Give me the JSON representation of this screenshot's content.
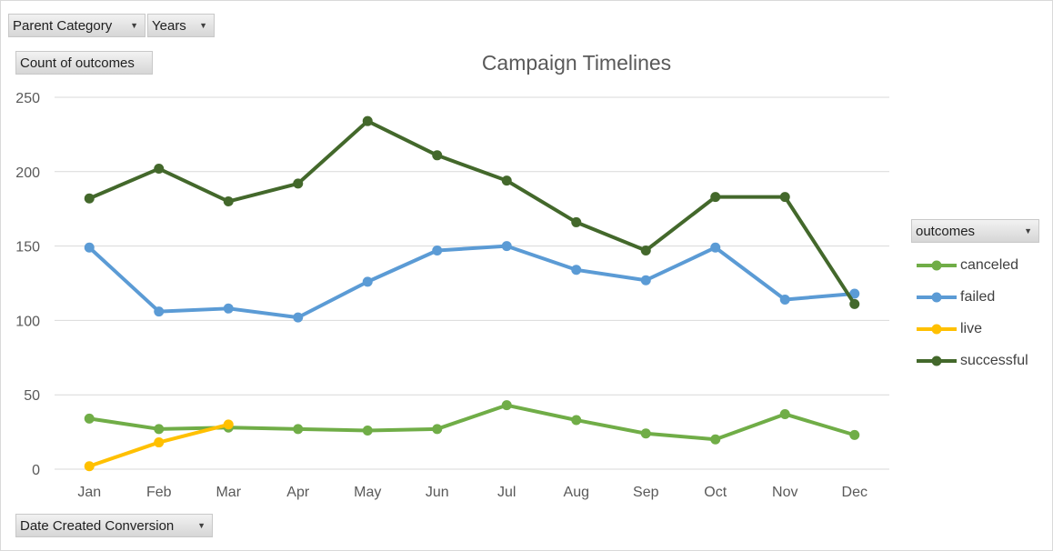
{
  "filters": {
    "parent_category": "Parent Category",
    "years": "Years",
    "values_field": "Count of outcomes",
    "axis_field": "Date Created Conversion",
    "legend_field": "outcomes"
  },
  "icons": {
    "dropdown": "dropdown-arrow-icon"
  },
  "chart_data": {
    "type": "line",
    "title": "Campaign Timelines",
    "xlabel": "",
    "ylabel": "",
    "categories": [
      "Jan",
      "Feb",
      "Mar",
      "Apr",
      "May",
      "Jun",
      "Jul",
      "Aug",
      "Sep",
      "Oct",
      "Nov",
      "Dec"
    ],
    "ylim": [
      0,
      250
    ],
    "yticks": [
      0,
      50,
      100,
      150,
      200,
      250
    ],
    "grid": true,
    "legend": "right",
    "series": [
      {
        "name": "canceled",
        "color": "#70ad47",
        "values": [
          34,
          27,
          28,
          27,
          26,
          27,
          43,
          33,
          24,
          20,
          37,
          23
        ]
      },
      {
        "name": "failed",
        "color": "#5b9bd5",
        "values": [
          149,
          106,
          108,
          102,
          126,
          147,
          150,
          134,
          127,
          149,
          114,
          118
        ]
      },
      {
        "name": "live",
        "color": "#ffc000",
        "values": [
          2,
          18,
          30,
          null,
          null,
          null,
          null,
          null,
          null,
          null,
          null,
          null
        ]
      },
      {
        "name": "successful",
        "color": "#43682b",
        "values": [
          182,
          202,
          180,
          192,
          234,
          211,
          194,
          166,
          147,
          183,
          183,
          111
        ]
      }
    ]
  }
}
